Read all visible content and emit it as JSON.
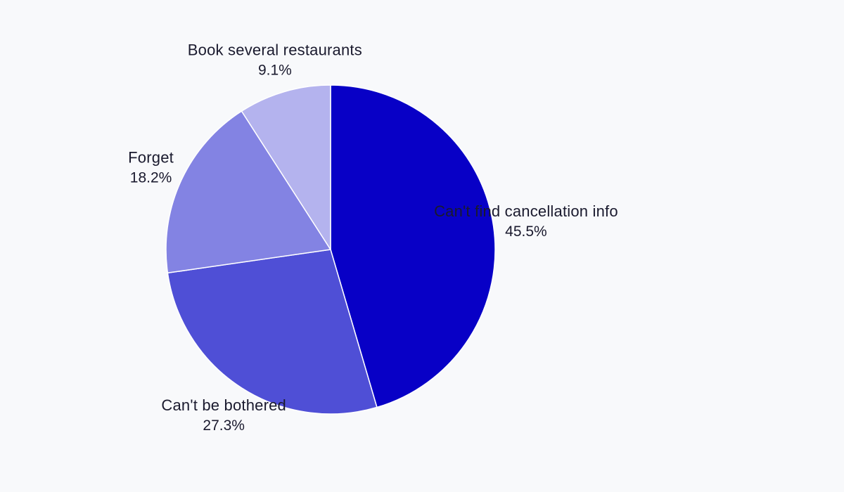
{
  "chart_data": {
    "type": "pie",
    "title": "",
    "start_angle_deg": 0,
    "direction": "clockwise",
    "slices": [
      {
        "label": "Can't find cancellation info",
        "value": 45.5,
        "value_label": "45.5%",
        "color": "#0800c6"
      },
      {
        "label": "Can't be bothered",
        "value": 27.3,
        "value_label": "27.3%",
        "color": "#4f4fd6"
      },
      {
        "label": "Forget",
        "value": 18.2,
        "value_label": "18.2%",
        "color": "#8383e3"
      },
      {
        "label": "Book several restaurants",
        "value": 9.1,
        "value_label": "9.1%",
        "color": "#b4b3ee"
      }
    ]
  }
}
